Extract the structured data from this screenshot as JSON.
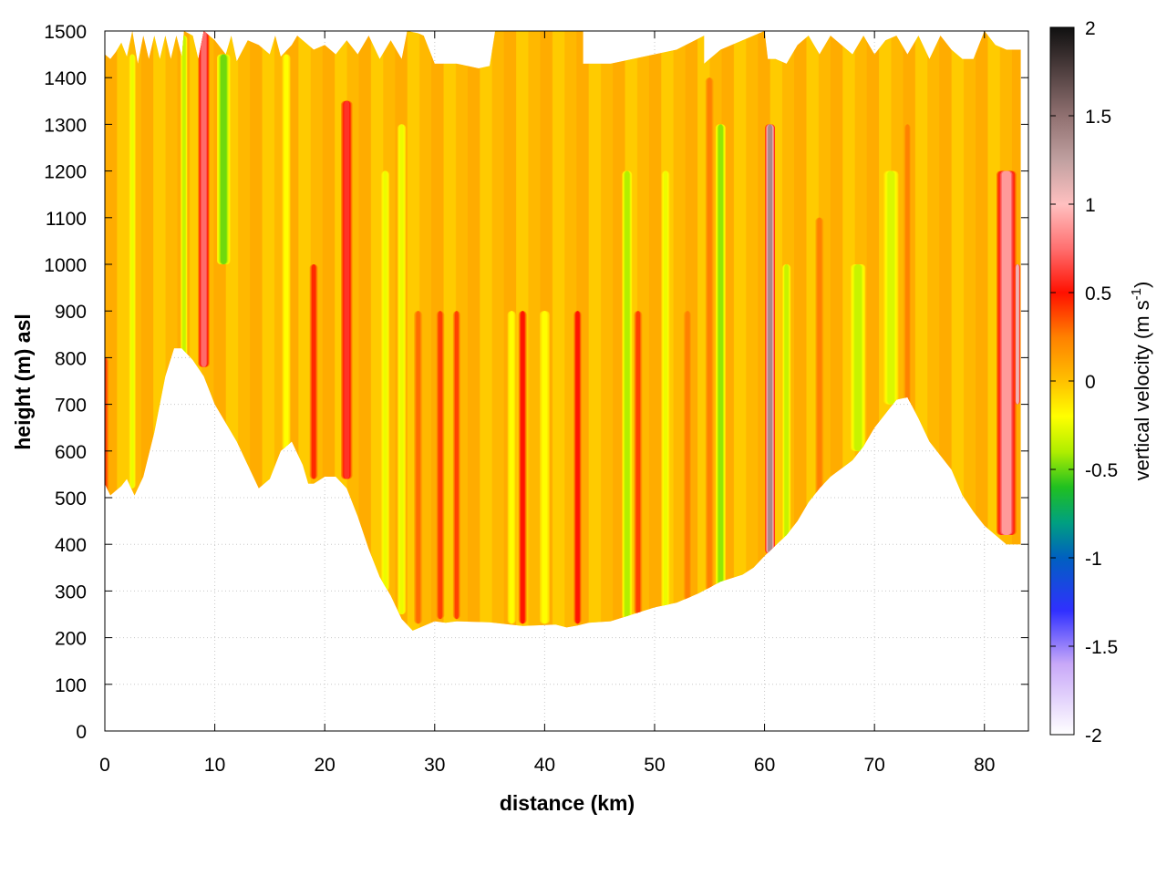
{
  "chart_data": {
    "type": "heatmap",
    "xlabel": "distance (km)",
    "ylabel": "height (m) asl",
    "xlim": [
      0,
      84
    ],
    "ylim": [
      0,
      1500
    ],
    "x_ticks": [
      "0",
      "10",
      "20",
      "30",
      "40",
      "50",
      "60",
      "70",
      "80"
    ],
    "y_ticks": [
      "0",
      "100",
      "200",
      "300",
      "400",
      "500",
      "600",
      "700",
      "800",
      "900",
      "1000",
      "1100",
      "1200",
      "1300",
      "1400",
      "1500"
    ],
    "grid": true,
    "colorbar": {
      "label_main": "vertical velocity (m s",
      "label_sup": "-1",
      "label_close": ")",
      "range": [
        -2,
        2
      ],
      "ticks": [
        "-2",
        "-1.5",
        "-1",
        "-0.5",
        "0",
        "0.5",
        "1",
        "1.5",
        "2"
      ],
      "palette": [
        {
          "v": -2.0,
          "color": "#ffffff"
        },
        {
          "v": -1.6,
          "color": "#c8a8f8"
        },
        {
          "v": -1.3,
          "color": "#3030ff"
        },
        {
          "v": -1.0,
          "color": "#0060c0"
        },
        {
          "v": -0.8,
          "color": "#00a080"
        },
        {
          "v": -0.6,
          "color": "#20c020"
        },
        {
          "v": -0.4,
          "color": "#b0ee00"
        },
        {
          "v": -0.2,
          "color": "#ffff00"
        },
        {
          "v": 0.0,
          "color": "#ffc000"
        },
        {
          "v": 0.25,
          "color": "#ff8000"
        },
        {
          "v": 0.5,
          "color": "#ff1000"
        },
        {
          "v": 0.75,
          "color": "#ff7070"
        },
        {
          "v": 1.0,
          "color": "#ffc0c0"
        },
        {
          "v": 1.25,
          "color": "#c0a0a0"
        },
        {
          "v": 1.5,
          "color": "#907070"
        },
        {
          "v": 1.75,
          "color": "#504040"
        },
        {
          "v": 2.0,
          "color": "#101010"
        }
      ]
    },
    "terrain_bottom": [
      [
        0,
        530
      ],
      [
        0.5,
        505
      ],
      [
        1.5,
        525
      ],
      [
        2,
        540
      ],
      [
        2.7,
        505
      ],
      [
        3.5,
        545
      ],
      [
        4.5,
        640
      ],
      [
        5.5,
        760
      ],
      [
        6.3,
        820
      ],
      [
        7,
        820
      ],
      [
        8,
        795
      ],
      [
        9,
        760
      ],
      [
        10,
        700
      ],
      [
        11,
        660
      ],
      [
        12,
        620
      ],
      [
        13,
        570
      ],
      [
        14,
        520
      ],
      [
        15,
        540
      ],
      [
        16,
        600
      ],
      [
        17,
        620
      ],
      [
        18,
        570
      ],
      [
        18.5,
        530
      ],
      [
        19,
        530
      ],
      [
        20,
        545
      ],
      [
        21,
        545
      ],
      [
        22,
        520
      ],
      [
        23,
        460
      ],
      [
        24,
        390
      ],
      [
        25,
        330
      ],
      [
        26,
        290
      ],
      [
        27,
        240
      ],
      [
        28,
        215
      ],
      [
        29,
        225
      ],
      [
        30,
        235
      ],
      [
        31,
        232
      ],
      [
        32,
        235
      ],
      [
        35,
        233
      ],
      [
        38,
        225
      ],
      [
        41,
        228
      ],
      [
        42,
        222
      ],
      [
        43,
        226
      ],
      [
        44,
        232
      ],
      [
        46,
        235
      ],
      [
        48,
        250
      ],
      [
        50,
        265
      ],
      [
        52,
        275
      ],
      [
        54,
        295
      ],
      [
        56,
        320
      ],
      [
        58,
        335
      ],
      [
        59,
        350
      ],
      [
        60,
        375
      ],
      [
        62,
        420
      ],
      [
        63,
        450
      ],
      [
        64,
        490
      ],
      [
        65,
        520
      ],
      [
        66,
        545
      ],
      [
        68,
        580
      ],
      [
        69,
        610
      ],
      [
        70,
        650
      ],
      [
        71,
        680
      ],
      [
        72,
        710
      ],
      [
        73,
        715
      ],
      [
        74,
        670
      ],
      [
        75,
        620
      ],
      [
        76,
        590
      ],
      [
        77,
        560
      ],
      [
        78,
        505
      ],
      [
        79,
        470
      ],
      [
        80,
        440
      ],
      [
        81,
        420
      ],
      [
        82,
        400
      ],
      [
        83.3,
        400
      ]
    ],
    "terrain_top": [
      [
        0,
        1450
      ],
      [
        0.5,
        1440
      ],
      [
        1,
        1455
      ],
      [
        1.5,
        1475
      ],
      [
        2,
        1445
      ],
      [
        2.5,
        1500
      ],
      [
        3,
        1430
      ],
      [
        3.5,
        1490
      ],
      [
        4,
        1440
      ],
      [
        4.5,
        1490
      ],
      [
        5,
        1440
      ],
      [
        5.5,
        1490
      ],
      [
        6,
        1440
      ],
      [
        6.5,
        1490
      ],
      [
        7,
        1445
      ],
      [
        7.2,
        1500
      ],
      [
        8,
        1490
      ],
      [
        8.5,
        1440
      ],
      [
        9,
        1500
      ],
      [
        10,
        1480
      ],
      [
        11,
        1450
      ],
      [
        11.5,
        1490
      ],
      [
        12,
        1435
      ],
      [
        13,
        1480
      ],
      [
        14,
        1470
      ],
      [
        15,
        1450
      ],
      [
        15.5,
        1490
      ],
      [
        16,
        1445
      ],
      [
        17,
        1470
      ],
      [
        17.5,
        1490
      ],
      [
        18,
        1480
      ],
      [
        19,
        1460
      ],
      [
        20,
        1470
      ],
      [
        21,
        1450
      ],
      [
        22,
        1480
      ],
      [
        23,
        1450
      ],
      [
        24,
        1490
      ],
      [
        25,
        1440
      ],
      [
        26,
        1480
      ],
      [
        27,
        1440
      ],
      [
        27.5,
        1500
      ],
      [
        28.5,
        1495
      ],
      [
        29,
        1490
      ],
      [
        30,
        1430
      ],
      [
        32,
        1430
      ],
      [
        33,
        1425
      ],
      [
        34,
        1420
      ],
      [
        35,
        1425
      ],
      [
        35.5,
        1500
      ],
      [
        43.5,
        1500
      ],
      [
        43.5,
        1430
      ],
      [
        46,
        1430
      ],
      [
        48,
        1440
      ],
      [
        50,
        1450
      ],
      [
        52,
        1460
      ],
      [
        54.5,
        1490
      ],
      [
        54.5,
        1430
      ],
      [
        56,
        1460
      ],
      [
        57,
        1470
      ],
      [
        58,
        1480
      ],
      [
        59,
        1490
      ],
      [
        60,
        1500
      ],
      [
        60.3,
        1440
      ],
      [
        61,
        1440
      ],
      [
        62,
        1430
      ],
      [
        63,
        1470
      ],
      [
        64,
        1490
      ],
      [
        65,
        1450
      ],
      [
        66,
        1490
      ],
      [
        67,
        1470
      ],
      [
        68,
        1450
      ],
      [
        69,
        1490
      ],
      [
        70,
        1450
      ],
      [
        71,
        1480
      ],
      [
        72,
        1490
      ],
      [
        73,
        1450
      ],
      [
        74,
        1490
      ],
      [
        75,
        1440
      ],
      [
        76,
        1490
      ],
      [
        77,
        1460
      ],
      [
        78,
        1440
      ],
      [
        79,
        1440
      ],
      [
        80,
        1500
      ],
      [
        81,
        1470
      ],
      [
        82,
        1460
      ],
      [
        83.3,
        1460
      ]
    ],
    "updraft_columns": [
      {
        "x": 0.0,
        "w": 0.5,
        "v": 0.4,
        "ymin": 500,
        "ymax": 800
      },
      {
        "x": 9.0,
        "w": 0.7,
        "v": 0.75,
        "ymin": 780,
        "ymax": 1500
      },
      {
        "x": 19.0,
        "w": 0.5,
        "v": 0.45,
        "ymin": 540,
        "ymax": 1000
      },
      {
        "x": 22.0,
        "w": 0.7,
        "v": 0.6,
        "ymin": 540,
        "ymax": 1350
      },
      {
        "x": 28.5,
        "w": 0.5,
        "v": 0.3,
        "ymin": 230,
        "ymax": 900
      },
      {
        "x": 30.5,
        "w": 0.5,
        "v": 0.4,
        "ymin": 240,
        "ymax": 900
      },
      {
        "x": 32.0,
        "w": 0.45,
        "v": 0.4,
        "ymin": 240,
        "ymax": 900
      },
      {
        "x": 38.0,
        "w": 0.5,
        "v": 0.5,
        "ymin": 230,
        "ymax": 900
      },
      {
        "x": 43.0,
        "w": 0.5,
        "v": 0.5,
        "ymin": 230,
        "ymax": 900
      },
      {
        "x": 48.5,
        "w": 0.5,
        "v": 0.4,
        "ymin": 250,
        "ymax": 900
      },
      {
        "x": 53.0,
        "w": 0.5,
        "v": 0.25,
        "ymin": 280,
        "ymax": 900
      },
      {
        "x": 55.0,
        "w": 0.5,
        "v": 0.25,
        "ymin": 300,
        "ymax": 1400
      },
      {
        "x": 60.5,
        "w": 0.6,
        "v": 1.4,
        "ymin": 380,
        "ymax": 1300
      },
      {
        "x": 65.0,
        "w": 0.5,
        "v": 0.25,
        "ymin": 500,
        "ymax": 1100
      },
      {
        "x": 73.0,
        "w": 0.45,
        "v": 0.25,
        "ymin": 700,
        "ymax": 1300
      },
      {
        "x": 82.0,
        "w": 1.2,
        "v": 0.9,
        "ymin": 420,
        "ymax": 1200
      },
      {
        "x": 83.0,
        "w": 0.35,
        "v": 1.1,
        "ymin": 700,
        "ymax": 1000
      }
    ],
    "downdraft_columns": [
      {
        "x": 2.5,
        "w": 0.4,
        "v": -0.25,
        "ymin": 520,
        "ymax": 1450
      },
      {
        "x": 7.2,
        "w": 0.4,
        "v": -0.35,
        "ymin": 800,
        "ymax": 1490
      },
      {
        "x": 10.8,
        "w": 0.8,
        "v": -0.5,
        "ymin": 1000,
        "ymax": 1450
      },
      {
        "x": 16.5,
        "w": 0.5,
        "v": -0.2,
        "ymin": 600,
        "ymax": 1450
      },
      {
        "x": 25.5,
        "w": 0.5,
        "v": -0.25,
        "ymin": 300,
        "ymax": 1200
      },
      {
        "x": 27.0,
        "w": 0.5,
        "v": -0.25,
        "ymin": 250,
        "ymax": 1300
      },
      {
        "x": 37.0,
        "w": 0.5,
        "v": -0.2,
        "ymin": 230,
        "ymax": 900
      },
      {
        "x": 40.0,
        "w": 0.6,
        "v": -0.2,
        "ymin": 230,
        "ymax": 900
      },
      {
        "x": 47.5,
        "w": 0.6,
        "v": -0.4,
        "ymin": 240,
        "ymax": 1200
      },
      {
        "x": 51.0,
        "w": 0.5,
        "v": -0.25,
        "ymin": 260,
        "ymax": 1200
      },
      {
        "x": 56.0,
        "w": 0.6,
        "v": -0.45,
        "ymin": 310,
        "ymax": 1300
      },
      {
        "x": 62.0,
        "w": 0.5,
        "v": -0.35,
        "ymin": 400,
        "ymax": 1000
      },
      {
        "x": 68.5,
        "w": 0.9,
        "v": -0.35,
        "ymin": 600,
        "ymax": 1000
      },
      {
        "x": 71.5,
        "w": 0.9,
        "v": -0.3,
        "ymin": 700,
        "ymax": 1200
      }
    ]
  }
}
